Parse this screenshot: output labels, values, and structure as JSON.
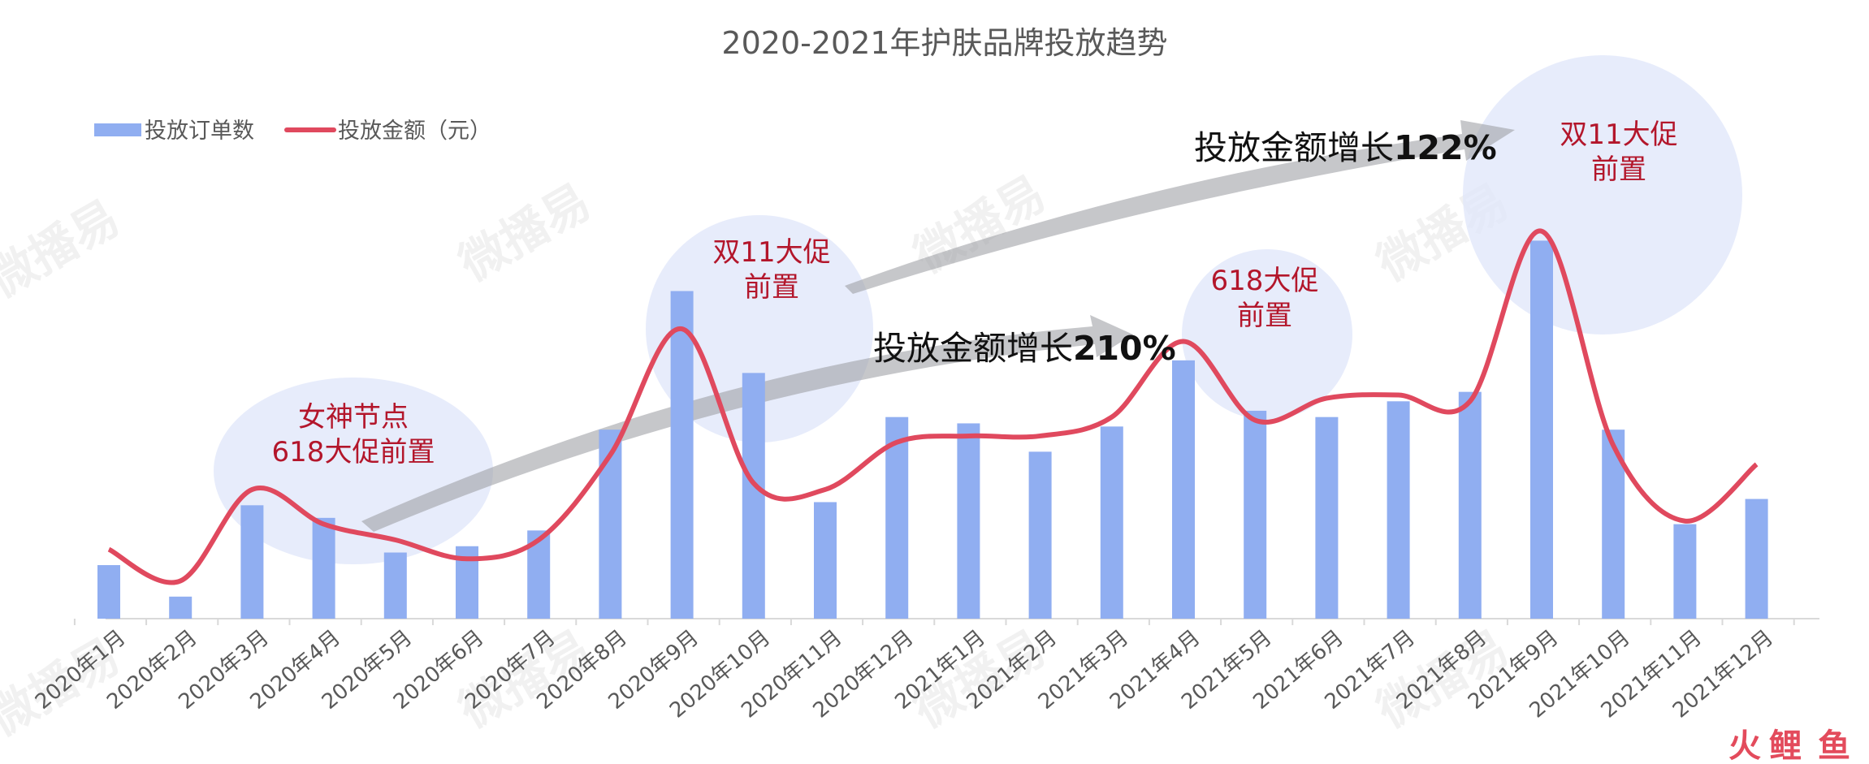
{
  "chart_data": {
    "type": "bar",
    "title": "2020-2021年护肤品牌投放趋势",
    "xlabel": "",
    "ylabel": "",
    "categories": [
      "2020年1月",
      "2020年2月",
      "2020年3月",
      "2020年4月",
      "2020年5月",
      "2020年6月",
      "2020年7月",
      "2020年8月",
      "2020年9月",
      "2020年10月",
      "2020年11月",
      "2020年12月",
      "2021年1月",
      "2021年2月",
      "2021年3月",
      "2021年4月",
      "2021年5月",
      "2021年6月",
      "2021年7月",
      "2021年8月",
      "2021年9月",
      "2021年10月",
      "2021年11月",
      "2021年12月"
    ],
    "series": [
      {
        "name": "投放订单数",
        "type": "bar",
        "color": "#90aef1",
        "values": [
          17,
          7,
          36,
          32,
          21,
          23,
          28,
          60,
          104,
          78,
          37,
          64,
          62,
          53,
          61,
          82,
          66,
          64,
          69,
          72,
          120,
          60,
          30,
          38
        ]
      },
      {
        "name": "投放金额（元）",
        "type": "line",
        "color": "#e0495e",
        "values": [
          22,
          12,
          41,
          30,
          25,
          19,
          25,
          52,
          92,
          43,
          41,
          56,
          58,
          58,
          64,
          88,
          63,
          70,
          71,
          69,
          123,
          55,
          31,
          49
        ]
      }
    ],
    "ylim": [
      0,
      140
    ],
    "grid": false,
    "legend_position": "top-left",
    "annotations": [
      {
        "text_lines": [
          "女神节点",
          "618大促前置"
        ],
        "at": "2020年4月"
      },
      {
        "text_lines": [
          "双11大促",
          "前置"
        ],
        "at": "2020年9月"
      },
      {
        "text_lines": [
          "618大促",
          "前置"
        ],
        "at": "2021年4月"
      },
      {
        "text_lines": [
          "双11大促",
          "前置"
        ],
        "at": "2021年9月"
      }
    ],
    "growth_labels": [
      {
        "prefix": "投放金额增长",
        "value": "210%"
      },
      {
        "prefix": "投放金额增长",
        "value": "122%"
      }
    ]
  },
  "watermark": "微播易",
  "brand": {
    "a": "火",
    "b": "鲤",
    "c": "鱼"
  }
}
